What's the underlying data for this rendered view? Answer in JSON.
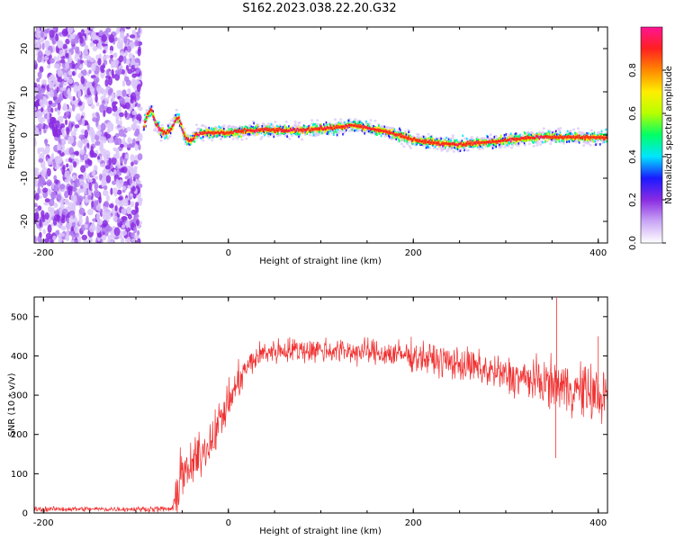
{
  "figure": {
    "title": "S162.2023.038.22.20.G32"
  },
  "chart_data": [
    {
      "type": "heatmap",
      "xlabel": "Height of straight line (km)",
      "ylabel": "Frequency (Hz)",
      "xlim": [
        -210,
        410
      ],
      "ylim": [
        -25,
        25
      ],
      "x_ticks": [
        -200,
        0,
        200,
        400
      ],
      "y_ticks": [
        -20,
        -10,
        0,
        10,
        20
      ],
      "colorbar": {
        "label": "Normalized spectral amplitude",
        "range": [
          0,
          1
        ],
        "ticks": [
          "0.0",
          "0.2",
          "0.4",
          "0.6",
          "0.8"
        ],
        "colors": [
          "#ffffff",
          "#c9a6f5",
          "#8a2be2",
          "#1a1aff",
          "#00e5ff",
          "#00ff66",
          "#b6ff00",
          "#ffee00",
          "#ff8800",
          "#ff2020",
          "#ff1493"
        ]
      },
      "noise_region_x": [
        -210,
        -95
      ],
      "ridge": {
        "x": [
          -92,
          -88,
          -84,
          -80,
          -76,
          -70,
          -64,
          -58,
          -54,
          -50,
          -46,
          -42,
          -36,
          -28,
          -20,
          -10,
          0,
          20,
          40,
          60,
          80,
          100,
          120,
          135,
          150,
          170,
          190,
          210,
          230,
          250,
          270,
          290,
          310,
          330,
          350,
          370,
          390,
          410
        ],
        "frequency": [
          2,
          5,
          6,
          3,
          1.5,
          0.5,
          1,
          3.5,
          4,
          1,
          -1,
          -1.5,
          0,
          0.5,
          0.5,
          0.5,
          0.5,
          1,
          1.2,
          1,
          1.2,
          1.5,
          1.8,
          2.2,
          1.6,
          0.8,
          -0.5,
          -1.5,
          -2,
          -2.2,
          -1.8,
          -1.5,
          -1,
          -0.5,
          -0.5,
          -0.5,
          -0.5,
          -0.6
        ]
      }
    },
    {
      "type": "line",
      "xlabel": "Height of straight line (km)",
      "ylabel": "SNR (10 * v/v)",
      "xlim": [
        -210,
        410
      ],
      "ylim": [
        0,
        550
      ],
      "x_ticks": [
        -200,
        0,
        200,
        400
      ],
      "y_ticks": [
        0,
        100,
        200,
        300,
        400,
        500
      ],
      "series": [
        {
          "color": "#f03030",
          "envelope": {
            "x": [
              -210,
              -150,
              -100,
              -60,
              -55,
              -50,
              -45,
              -40,
              -30,
              -20,
              -10,
              0,
              10,
              20,
              30,
              40,
              60,
              80,
              100,
              150,
              200,
              250,
              300,
              350,
              400,
              410
            ],
            "mean": [
              10,
              10,
              10,
              10,
              60,
              120,
              90,
              120,
              150,
              180,
              230,
              280,
              330,
              370,
              395,
              410,
              415,
              415,
              415,
              410,
              400,
              380,
              350,
              330,
              300,
              290
            ],
            "spread": [
              6,
              6,
              6,
              8,
              60,
              70,
              60,
              50,
              50,
              50,
              50,
              45,
              40,
              35,
              30,
              30,
              30,
              30,
              30,
              30,
              35,
              40,
              45,
              55,
              70,
              70
            ]
          },
          "peaks": [
            {
              "x": 355,
              "y": 548
            },
            {
              "x": 354,
              "y": 140
            },
            {
              "x": 400,
              "y": 450
            }
          ]
        }
      ]
    }
  ]
}
